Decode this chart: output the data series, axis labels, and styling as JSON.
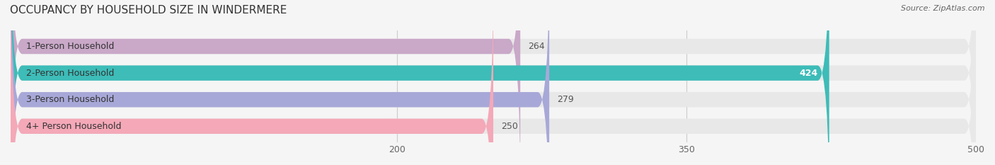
{
  "title": "OCCUPANCY BY HOUSEHOLD SIZE IN WINDERMERE",
  "source": "Source: ZipAtlas.com",
  "categories": [
    "1-Person Household",
    "2-Person Household",
    "3-Person Household",
    "4+ Person Household"
  ],
  "values": [
    264,
    424,
    279,
    250
  ],
  "bar_colors": [
    "#c9a8c8",
    "#3dbcb8",
    "#a8a8d8",
    "#f4a8b8"
  ],
  "value_colors": [
    "#555555",
    "#ffffff",
    "#555555",
    "#555555"
  ],
  "xmin": 0,
  "xmax": 500,
  "xticks": [
    200,
    350,
    500
  ],
  "title_fontsize": 11,
  "label_fontsize": 9,
  "value_fontsize": 9,
  "source_fontsize": 8,
  "background_color": "#f5f5f5"
}
